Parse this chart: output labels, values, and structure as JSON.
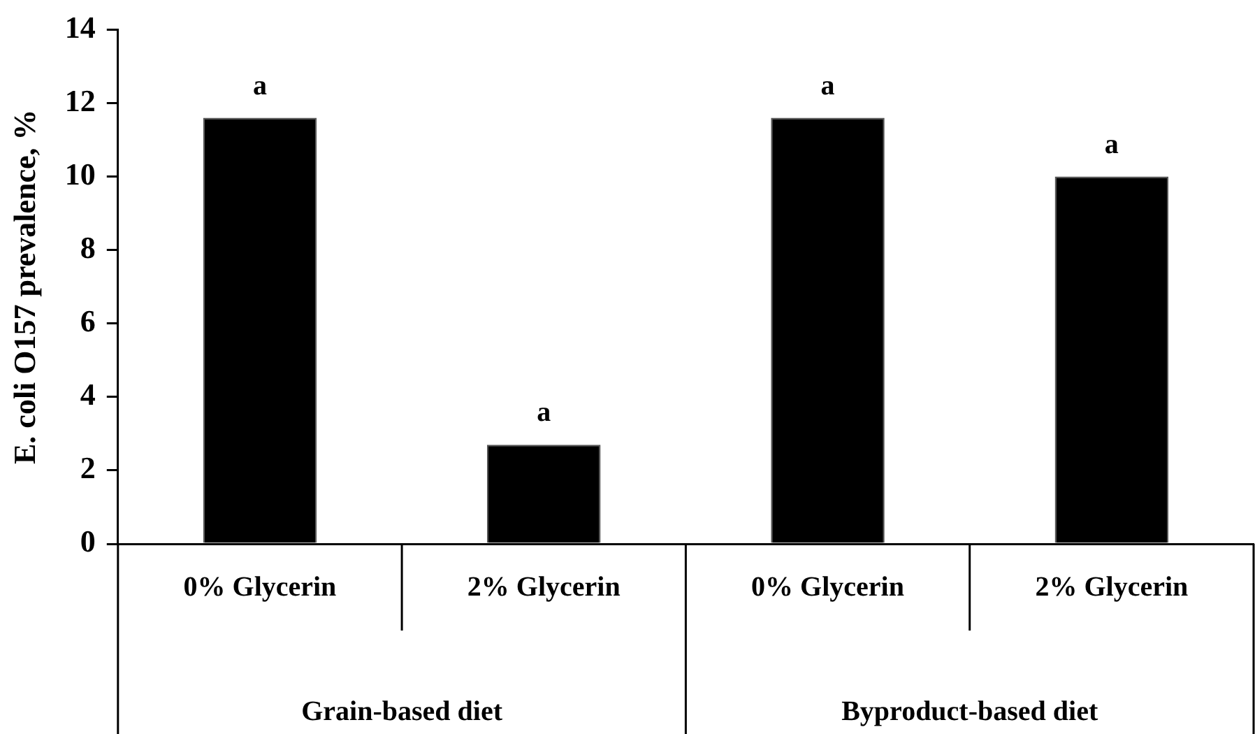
{
  "chart_data": {
    "type": "bar",
    "ylabel": "E. coli O157 prevalence, %",
    "categories": [
      "0% Glycerin",
      "2% Glycerin",
      "0% Glycerin",
      "2% Glycerin"
    ],
    "values": [
      11.6,
      2.7,
      11.6,
      10.0
    ],
    "value_labels": [
      "a",
      "a",
      "a",
      "a"
    ],
    "color": "#000000",
    "ylim": [
      0,
      14
    ],
    "yticks": [
      0,
      2,
      4,
      6,
      8,
      10,
      12,
      14
    ],
    "annotations": [
      "Grain-based diet",
      "Byproduct-based diet"
    ],
    "grid": false,
    "legend": false
  }
}
